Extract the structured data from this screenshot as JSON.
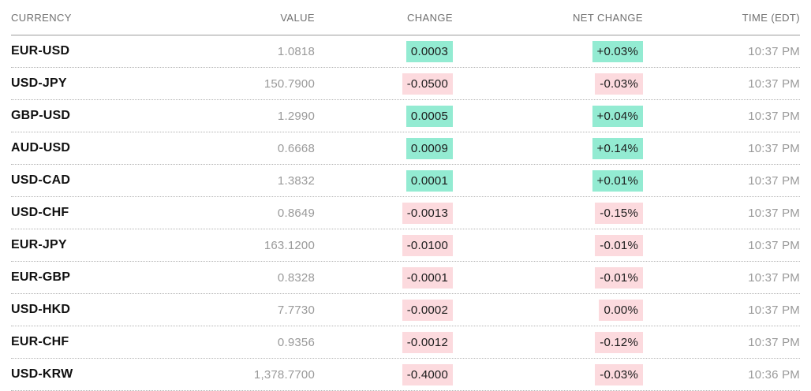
{
  "colors": {
    "positive-bg": "#93ebd2",
    "negative-bg": "#fcdade",
    "header-text": "#6f6f6f",
    "muted-text": "#9a9a9a",
    "strong-text": "#111111"
  },
  "table": {
    "columns": {
      "currency": "CURRENCY",
      "value": "VALUE",
      "change": "CHANGE",
      "net_change": "NET CHANGE",
      "time": "TIME (EDT)"
    },
    "rows": [
      {
        "currency": "EUR-USD",
        "value": "1.0818",
        "change": "0.0003",
        "change_dir": "pos",
        "net_change": "+0.03%",
        "net_dir": "pos",
        "time": "10:37 PM"
      },
      {
        "currency": "USD-JPY",
        "value": "150.7900",
        "change": "-0.0500",
        "change_dir": "neg",
        "net_change": "-0.03%",
        "net_dir": "neg",
        "time": "10:37 PM"
      },
      {
        "currency": "GBP-USD",
        "value": "1.2990",
        "change": "0.0005",
        "change_dir": "pos",
        "net_change": "+0.04%",
        "net_dir": "pos",
        "time": "10:37 PM"
      },
      {
        "currency": "AUD-USD",
        "value": "0.6668",
        "change": "0.0009",
        "change_dir": "pos",
        "net_change": "+0.14%",
        "net_dir": "pos",
        "time": "10:37 PM"
      },
      {
        "currency": "USD-CAD",
        "value": "1.3832",
        "change": "0.0001",
        "change_dir": "pos",
        "net_change": "+0.01%",
        "net_dir": "pos",
        "time": "10:37 PM"
      },
      {
        "currency": "USD-CHF",
        "value": "0.8649",
        "change": "-0.0013",
        "change_dir": "neg",
        "net_change": "-0.15%",
        "net_dir": "neg",
        "time": "10:37 PM"
      },
      {
        "currency": "EUR-JPY",
        "value": "163.1200",
        "change": "-0.0100",
        "change_dir": "neg",
        "net_change": "-0.01%",
        "net_dir": "neg",
        "time": "10:37 PM"
      },
      {
        "currency": "EUR-GBP",
        "value": "0.8328",
        "change": "-0.0001",
        "change_dir": "neg",
        "net_change": "-0.01%",
        "net_dir": "neg",
        "time": "10:37 PM"
      },
      {
        "currency": "USD-HKD",
        "value": "7.7730",
        "change": "-0.0002",
        "change_dir": "neg",
        "net_change": "0.00%",
        "net_dir": "neg",
        "time": "10:37 PM"
      },
      {
        "currency": "EUR-CHF",
        "value": "0.9356",
        "change": "-0.0012",
        "change_dir": "neg",
        "net_change": "-0.12%",
        "net_dir": "neg",
        "time": "10:37 PM"
      },
      {
        "currency": "USD-KRW",
        "value": "1,378.7700",
        "change": "-0.4000",
        "change_dir": "neg",
        "net_change": "-0.03%",
        "net_dir": "neg",
        "time": "10:36 PM"
      }
    ]
  }
}
